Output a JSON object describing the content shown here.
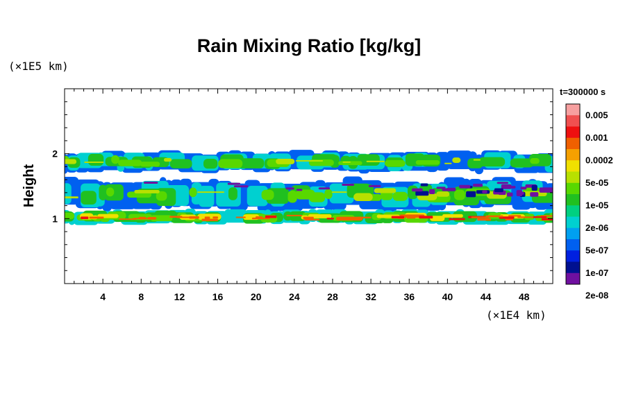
{
  "chart_data": {
    "type": "heatmap",
    "title": "Rain Mixing Ratio [kg/kg]",
    "ylabel": "Height",
    "y_unit_label": "(×1E5 km)",
    "x_unit_label": "(×1E4 km)",
    "time_label": "t=300000 s",
    "xlim": [
      0,
      51
    ],
    "ylim": [
      0,
      3
    ],
    "x_ticks": [
      4,
      8,
      12,
      16,
      20,
      24,
      28,
      32,
      36,
      40,
      44,
      48
    ],
    "y_ticks": [
      1,
      2
    ],
    "colorbar": {
      "labels": [
        "0.005",
        "0.001",
        "0.0002",
        "5e-05",
        "1e-05",
        "2e-06",
        "5e-07",
        "1e-07",
        "2e-08"
      ],
      "colors": [
        "#f7a0a0",
        "#f05050",
        "#ee1010",
        "#f06000",
        "#f5a000",
        "#f0e000",
        "#b8e000",
        "#58d800",
        "#20c020",
        "#00d080",
        "#00d0d0",
        "#00a0f0",
        "#0060f0",
        "#0020e0",
        "#001090",
        "#7010a0"
      ]
    },
    "bands": [
      {
        "name": "upper band",
        "y_bottom": 1.72,
        "y_top": 2.03,
        "level": "5e-05"
      },
      {
        "name": "middle band",
        "y_bottom": 1.15,
        "y_top": 1.6,
        "level": "1e-05"
      },
      {
        "name": "lower band",
        "y_bottom": 0.92,
        "y_top": 1.13,
        "level": "0.001"
      }
    ]
  }
}
